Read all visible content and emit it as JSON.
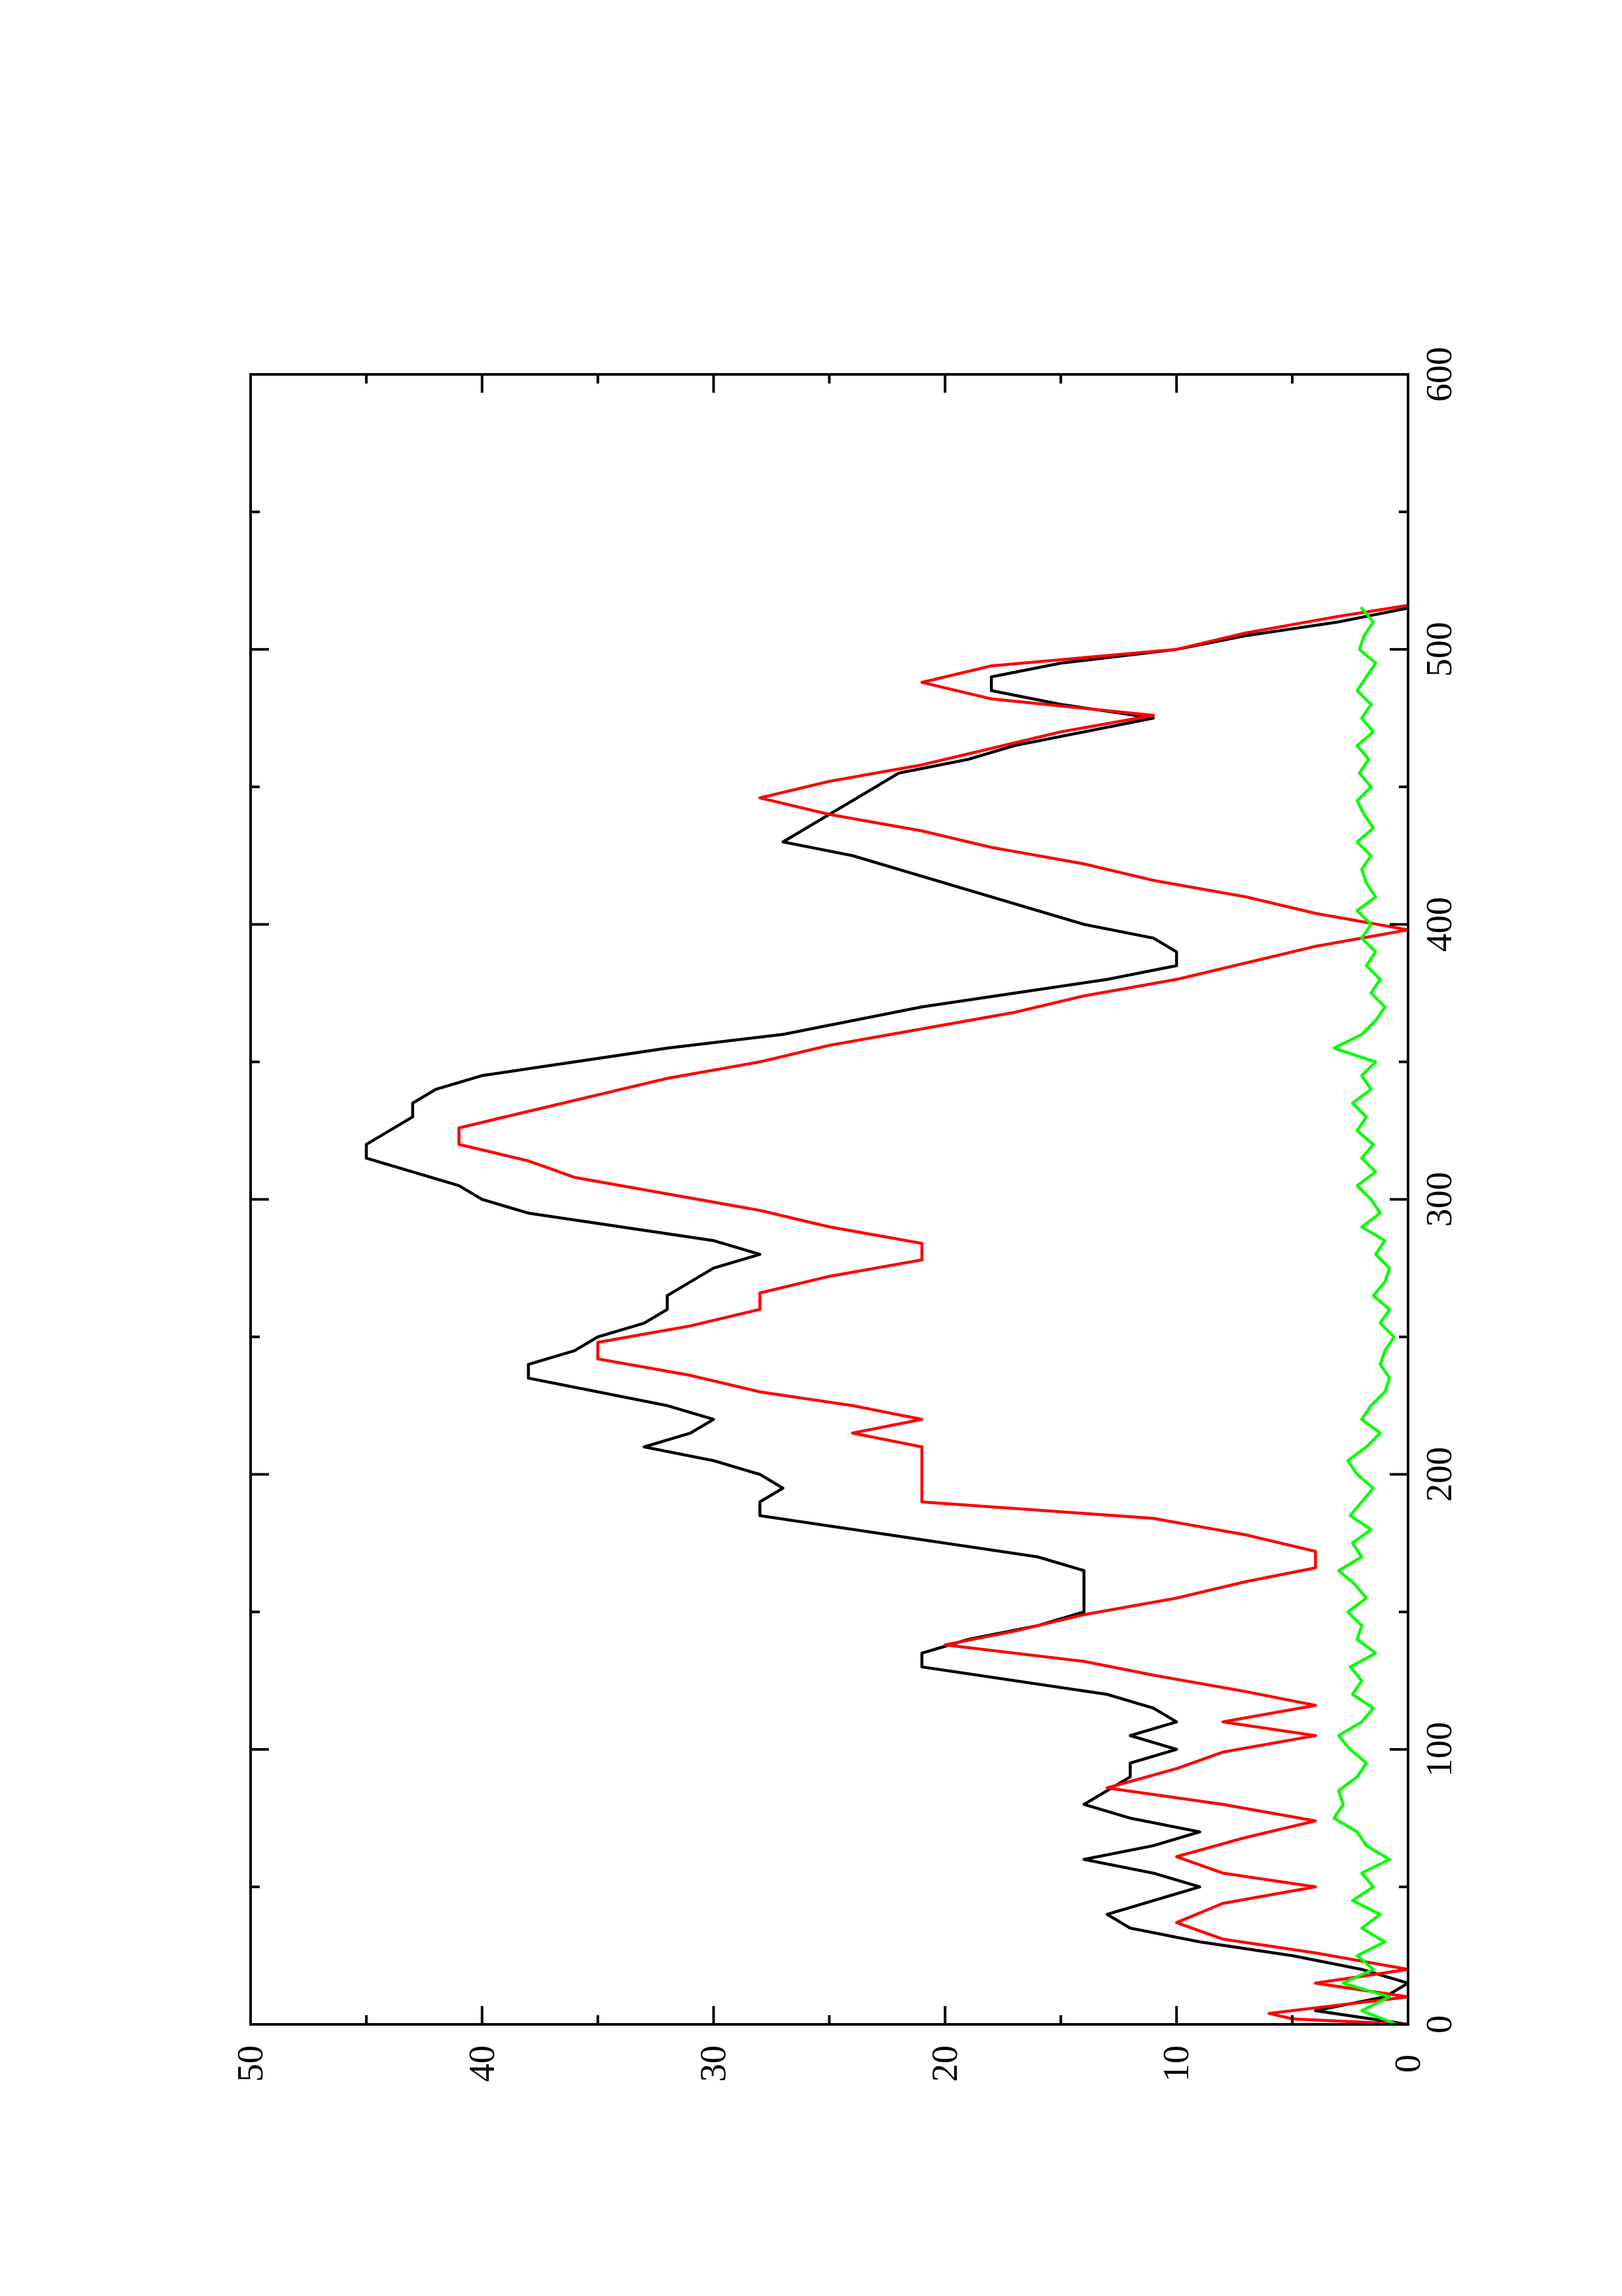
{
  "chart_data": {
    "type": "line",
    "orientation": "rotated 90 degrees counter-clockwise",
    "title": "",
    "xlabel": "",
    "ylabel": "",
    "xlim": [
      0,
      600
    ],
    "ylim": [
      0,
      50
    ],
    "x_major_ticks": [
      0,
      100,
      200,
      300,
      400,
      500,
      600
    ],
    "x_tick_labels": [
      "0",
      "100",
      "200",
      "300",
      "400",
      "500",
      "600"
    ],
    "x_minor_ticks": [
      50,
      150,
      250,
      350,
      450,
      550
    ],
    "y_major_ticks": [
      0,
      10,
      20,
      30,
      40,
      50
    ],
    "y_tick_labels": [
      "0",
      "10",
      "20",
      "30",
      "40",
      "50"
    ],
    "y_minor_ticks": [
      5,
      15,
      25,
      35,
      45
    ],
    "grid": false,
    "legend": "none",
    "series": [
      {
        "color": "#000000",
        "x": [
          0,
          5,
          10,
          15,
          20,
          25,
          30,
          35,
          40,
          45,
          50,
          55,
          60,
          65,
          70,
          75,
          80,
          85,
          90,
          95,
          100,
          105,
          110,
          115,
          120,
          125,
          130,
          135,
          140,
          145,
          150,
          155,
          160,
          165,
          170,
          175,
          180,
          185,
          190,
          195,
          200,
          205,
          210,
          215,
          220,
          225,
          230,
          235,
          240,
          245,
          250,
          255,
          260,
          265,
          270,
          275,
          280,
          285,
          290,
          295,
          300,
          305,
          310,
          315,
          320,
          325,
          330,
          335,
          340,
          345,
          350,
          355,
          360,
          365,
          370,
          375,
          380,
          385,
          390,
          395,
          400,
          405,
          410,
          415,
          420,
          425,
          430,
          435,
          440,
          445,
          450,
          455,
          460,
          465,
          470,
          475,
          480,
          485,
          490,
          495,
          500,
          505,
          510,
          515
        ],
        "y": [
          0,
          4,
          1,
          0,
          2,
          5,
          9,
          12,
          13,
          11,
          9,
          11,
          14,
          11,
          9,
          12,
          14,
          13,
          12,
          12,
          10,
          12,
          10,
          11,
          13,
          17,
          21,
          21,
          19,
          16,
          14,
          14,
          14,
          14,
          16,
          20,
          24,
          28,
          28,
          27,
          28,
          30,
          33,
          31,
          30,
          32,
          35,
          38,
          38,
          36,
          35,
          33,
          32,
          32,
          31,
          30,
          28,
          30,
          34,
          38,
          40,
          41,
          43,
          45,
          45,
          44,
          43,
          43,
          42,
          40,
          36,
          32,
          27,
          24,
          21,
          17,
          13,
          10,
          10,
          11,
          14,
          16,
          18,
          20,
          22,
          24,
          27,
          26,
          25,
          24,
          23,
          22,
          19,
          17,
          14,
          11,
          15,
          18,
          18,
          15,
          10,
          7,
          3,
          0
        ]
      },
      {
        "color": "#ff0000",
        "x": [
          0,
          2,
          4,
          10,
          15,
          20,
          26,
          31,
          37,
          44,
          50,
          55,
          61,
          68,
          74,
          80,
          86,
          93,
          99,
          105,
          110,
          116,
          121,
          127,
          132,
          138,
          143,
          149,
          155,
          161,
          166,
          172,
          178,
          184,
          190,
          210,
          215,
          220,
          225,
          230,
          236,
          242,
          248,
          254,
          260,
          266,
          272,
          278,
          284,
          290,
          296,
          302,
          308,
          314,
          320,
          326,
          332,
          338,
          344,
          350,
          356,
          362,
          368,
          374,
          380,
          386,
          392,
          398,
          404,
          410,
          416,
          422,
          428,
          434,
          440,
          446,
          452,
          458,
          464,
          470,
          476,
          482,
          488,
          494,
          500,
          506,
          512,
          516
        ],
        "y": [
          0,
          5,
          6,
          0,
          4,
          0,
          4,
          8,
          10,
          8,
          4,
          8,
          10,
          7,
          4,
          8,
          13,
          10,
          8,
          4,
          8,
          4,
          7,
          11,
          14,
          20,
          17,
          14,
          10,
          7,
          4,
          4,
          7,
          11,
          21,
          21,
          24,
          21,
          24,
          28,
          31,
          35,
          35,
          31,
          28,
          28,
          25,
          21,
          21,
          25,
          28,
          32,
          36,
          38,
          41,
          41,
          38,
          35,
          32,
          28,
          25,
          21,
          17,
          14,
          10,
          7,
          4,
          0,
          4,
          7,
          11,
          14,
          18,
          21,
          25,
          28,
          25,
          21,
          18,
          15,
          11,
          18,
          21,
          18,
          10,
          7,
          3,
          0
        ]
      },
      {
        "color": "#00ff00",
        "x": [
          0,
          5,
          10,
          15,
          20,
          25,
          30,
          35,
          40,
          45,
          50,
          55,
          60,
          65,
          70,
          75,
          80,
          85,
          90,
          95,
          100,
          105,
          110,
          115,
          120,
          125,
          130,
          135,
          140,
          145,
          150,
          155,
          160,
          165,
          170,
          175,
          180,
          185,
          190,
          195,
          200,
          205,
          210,
          215,
          220,
          225,
          230,
          235,
          240,
          245,
          250,
          255,
          260,
          265,
          270,
          275,
          280,
          285,
          290,
          295,
          300,
          305,
          310,
          315,
          320,
          325,
          330,
          335,
          340,
          345,
          350,
          355,
          360,
          365,
          370,
          375,
          380,
          385,
          390,
          395,
          400,
          405,
          410,
          415,
          420,
          425,
          430,
          435,
          440,
          445,
          450,
          455,
          460,
          465,
          470,
          475,
          480,
          485,
          490,
          495,
          500,
          505,
          510,
          515
        ],
        "y": [
          0.5,
          2.0,
          0.8,
          2.8,
          1.5,
          2.2,
          1.0,
          2.0,
          1.2,
          2.4,
          1.5,
          2.0,
          0.8,
          1.8,
          2.2,
          3.2,
          2.8,
          3.0,
          2.2,
          1.8,
          2.5,
          3.0,
          2.0,
          1.5,
          2.4,
          2.0,
          2.5,
          1.4,
          2.2,
          2.0,
          2.6,
          1.8,
          2.3,
          3.0,
          2.0,
          2.4,
          1.6,
          2.5,
          2.0,
          1.5,
          2.2,
          2.6,
          1.8,
          1.2,
          2.0,
          1.6,
          1.0,
          0.8,
          1.2,
          1.0,
          0.6,
          1.2,
          0.8,
          1.5,
          1.0,
          0.8,
          1.4,
          1.0,
          2.0,
          1.2,
          1.6,
          2.2,
          1.4,
          2.0,
          1.5,
          2.2,
          1.8,
          2.4,
          1.6,
          2.0,
          1.4,
          3.2,
          2.0,
          1.4,
          1.0,
          1.6,
          1.2,
          1.8,
          1.4,
          2.0,
          1.6,
          2.2,
          1.4,
          1.8,
          2.0,
          1.6,
          2.2,
          1.5,
          1.9,
          2.2,
          1.6,
          2.1,
          1.7,
          2.2,
          1.5,
          2.0,
          1.6,
          2.2,
          1.8,
          1.4,
          2.1,
          1.9,
          1.5,
          2.0
        ]
      }
    ]
  }
}
